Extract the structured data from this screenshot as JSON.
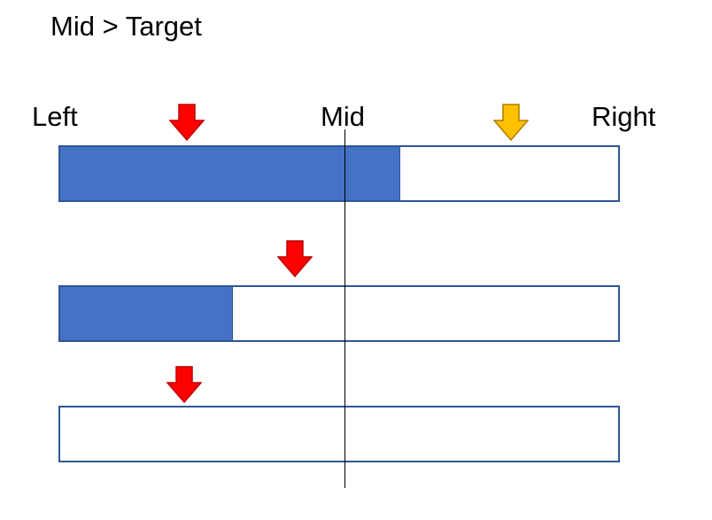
{
  "title": "Mid > Target",
  "labels": {
    "left": "Left",
    "mid": "Mid",
    "right": "Right"
  },
  "bars": [
    {
      "fill_fraction": 0.61
    },
    {
      "fill_fraction": 0.31
    },
    {
      "fill_fraction": 0.0
    }
  ],
  "arrows": [
    {
      "color": "#ff0000",
      "stroke": "#c00000"
    },
    {
      "color": "#ffc000",
      "stroke": "#b07c00"
    },
    {
      "color": "#ff0000",
      "stroke": "#c00000"
    },
    {
      "color": "#ff0000",
      "stroke": "#c00000"
    }
  ],
  "colors": {
    "bar_fill": "#4472c4",
    "bar_border": "#2f5597"
  }
}
